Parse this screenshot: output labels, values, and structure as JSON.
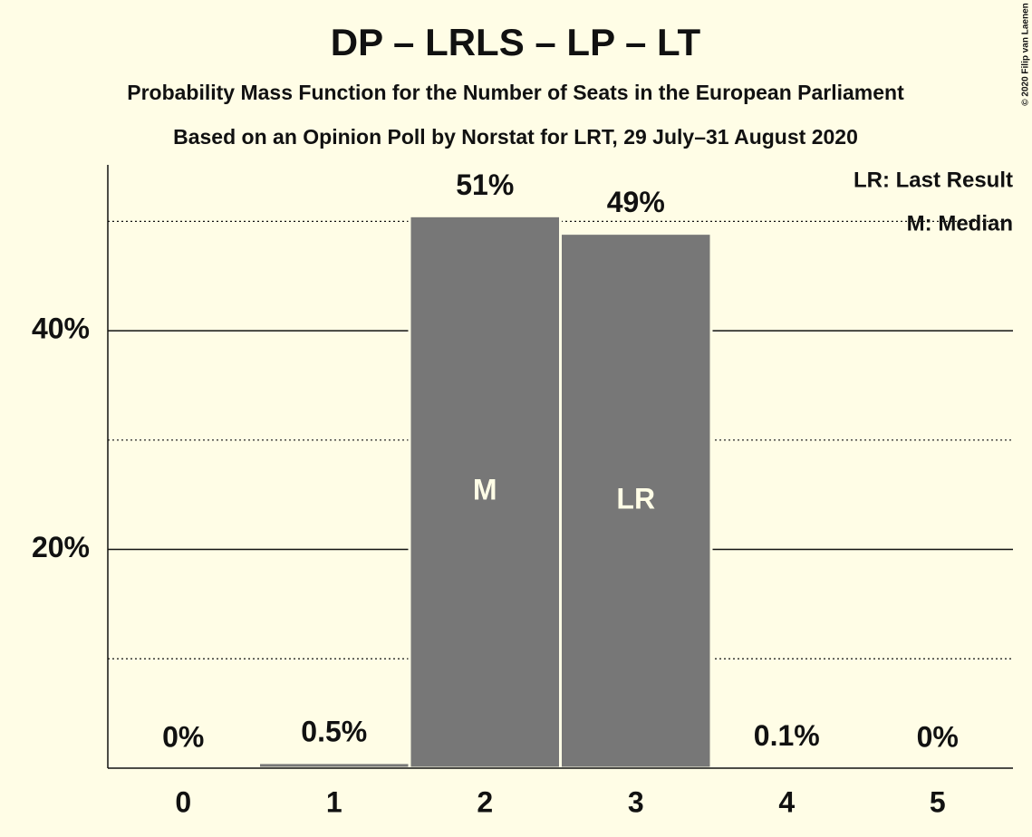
{
  "chart_data": {
    "type": "bar",
    "title": "DP – LRLS – LP – LT",
    "subtitle": "Probability Mass Function for the Number of Seats in the European Parliament",
    "caption": "Based on an Opinion Poll by Norstat for LRT, 29 July–31 August 2020",
    "categories": [
      "0",
      "1",
      "2",
      "3",
      "4",
      "5"
    ],
    "values": [
      0,
      0.5,
      50.5,
      48.9,
      0.1,
      0
    ],
    "value_labels": [
      "0%",
      "0.5%",
      "51%",
      "49%",
      "0.1%",
      "0%"
    ],
    "color": "#777777",
    "ylim": [
      0,
      55
    ],
    "yticks": [
      {
        "value": 20,
        "label": "20%"
      },
      {
        "value": 40,
        "label": "40%"
      }
    ],
    "minor_yticks": [
      10,
      30,
      50
    ],
    "grid": true,
    "annotations": [
      {
        "category": "2",
        "text": "M"
      },
      {
        "category": "3",
        "text": "LR"
      }
    ],
    "legend": [
      "LR: Last Result",
      "M: Median"
    ],
    "copyright": "© 2020 Filip van Laenen"
  }
}
